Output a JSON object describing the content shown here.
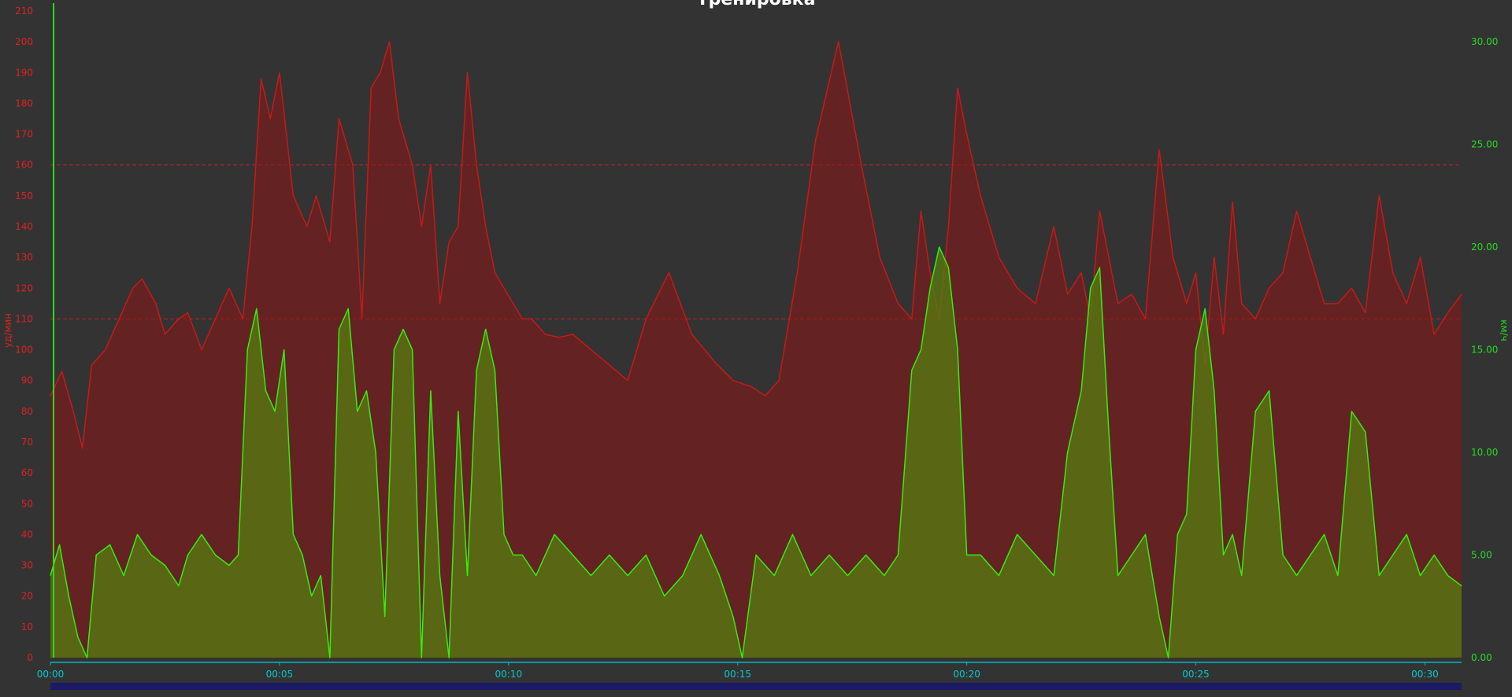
{
  "chart_data": {
    "type": "area",
    "title": "Тренировка",
    "xlabel": "",
    "x_unit": "time (hh:mm)",
    "xlim": [
      0,
      30.8
    ],
    "x_ticks": [
      0,
      5,
      10,
      15,
      20,
      25,
      30
    ],
    "x_tick_labels": [
      "00:00",
      "00:05",
      "00:10",
      "00:15",
      "00:20",
      "00:25",
      "00:30"
    ],
    "left_axis": {
      "label": "уд/мин",
      "ylim": [
        0,
        210
      ],
      "ticks": [
        0,
        10,
        20,
        30,
        40,
        50,
        60,
        70,
        80,
        90,
        100,
        110,
        120,
        130,
        140,
        150,
        160,
        170,
        180,
        190,
        200,
        210
      ],
      "color": "#dd2222"
    },
    "right_axis": {
      "label": "км/ч",
      "ylim": [
        0,
        31.5
      ],
      "ticks": [
        0,
        5,
        10,
        15,
        20,
        25,
        30
      ],
      "tick_labels": [
        "0.00",
        "5.00",
        "10.00",
        "15.00",
        "20.00",
        "25.00",
        "30.00"
      ],
      "color": "#22dd22"
    },
    "reference_lines": [
      {
        "axis": "left",
        "value": 110
      },
      {
        "axis": "left",
        "value": 160
      }
    ],
    "series": [
      {
        "axis": "left",
        "color": "#c41a1a",
        "fill": "rgba(140,20,20,0.55)",
        "x": [
          0,
          0.25,
          0.5,
          0.7,
          0.9,
          1.2,
          1.5,
          1.8,
          2.0,
          2.3,
          2.5,
          2.8,
          3.0,
          3.3,
          3.6,
          3.9,
          4.2,
          4.4,
          4.6,
          4.8,
          5.0,
          5.3,
          5.6,
          5.8,
          6.1,
          6.3,
          6.6,
          6.8,
          7.0,
          7.2,
          7.4,
          7.6,
          7.9,
          8.1,
          8.3,
          8.5,
          8.7,
          8.9,
          9.1,
          9.3,
          9.5,
          9.7,
          9.9,
          10.1,
          10.3,
          10.5,
          10.8,
          11.1,
          11.4,
          11.8,
          12.2,
          12.6,
          13.0,
          13.5,
          14.0,
          14.5,
          14.9,
          15.3,
          15.6,
          15.9,
          16.3,
          16.7,
          17.2,
          17.7,
          18.1,
          18.5,
          18.8,
          19.0,
          19.2,
          19.4,
          19.6,
          19.8,
          20.0,
          20.3,
          20.7,
          21.1,
          21.5,
          21.9,
          22.2,
          22.5,
          22.7,
          22.9,
          23.1,
          23.3,
          23.6,
          23.9,
          24.2,
          24.5,
          24.8,
          25.0,
          25.2,
          25.4,
          25.6,
          25.8,
          26.0,
          26.3,
          26.6,
          26.9,
          27.2,
          27.5,
          27.8,
          28.1,
          28.4,
          28.7,
          29.0,
          29.3,
          29.6,
          29.9,
          30.2,
          30.5,
          30.8
        ],
        "y": [
          85,
          93,
          80,
          68,
          95,
          100,
          110,
          120,
          123,
          115,
          105,
          110,
          112,
          100,
          110,
          120,
          110,
          140,
          188,
          175,
          190,
          150,
          140,
          150,
          135,
          175,
          160,
          110,
          185,
          190,
          200,
          175,
          160,
          140,
          160,
          115,
          135,
          140,
          190,
          160,
          140,
          125,
          120,
          115,
          110,
          110,
          105,
          104,
          105,
          100,
          95,
          90,
          110,
          125,
          105,
          96,
          90,
          88,
          85,
          90,
          125,
          168,
          200,
          160,
          130,
          115,
          110,
          145,
          125,
          110,
          140,
          185,
          170,
          150,
          130,
          120,
          115,
          140,
          118,
          125,
          110,
          145,
          130,
          115,
          118,
          110,
          165,
          130,
          115,
          125,
          95,
          130,
          105,
          148,
          115,
          110,
          120,
          125,
          145,
          130,
          115,
          115,
          120,
          112,
          150,
          125,
          115,
          130,
          105,
          112,
          118
        ]
      },
      {
        "axis": "right",
        "color": "#33ee11",
        "fill": "rgba(85,125,15,0.75)",
        "x": [
          0,
          0.2,
          0.4,
          0.6,
          0.8,
          1.0,
          1.3,
          1.6,
          1.9,
          2.2,
          2.5,
          2.8,
          3.0,
          3.3,
          3.6,
          3.9,
          4.1,
          4.3,
          4.5,
          4.7,
          4.9,
          5.1,
          5.3,
          5.5,
          5.7,
          5.9,
          6.1,
          6.3,
          6.5,
          6.7,
          6.9,
          7.1,
          7.3,
          7.5,
          7.7,
          7.9,
          8.1,
          8.3,
          8.5,
          8.7,
          8.9,
          9.1,
          9.3,
          9.5,
          9.7,
          9.9,
          10.1,
          10.3,
          10.6,
          11.0,
          11.4,
          11.8,
          12.2,
          12.6,
          13.0,
          13.4,
          13.8,
          14.2,
          14.6,
          14.9,
          15.1,
          15.4,
          15.8,
          16.2,
          16.6,
          17.0,
          17.4,
          17.8,
          18.2,
          18.5,
          18.8,
          19.0,
          19.2,
          19.4,
          19.6,
          19.8,
          20.0,
          20.3,
          20.7,
          21.1,
          21.5,
          21.9,
          22.2,
          22.5,
          22.7,
          22.9,
          23.1,
          23.3,
          23.6,
          23.9,
          24.2,
          24.4,
          24.6,
          24.8,
          25.0,
          25.2,
          25.4,
          25.6,
          25.8,
          26.0,
          26.3,
          26.6,
          26.9,
          27.2,
          27.5,
          27.8,
          28.1,
          28.4,
          28.7,
          29.0,
          29.3,
          29.6,
          29.9,
          30.2,
          30.5,
          30.8
        ],
        "y": [
          4,
          5.5,
          3,
          1,
          0,
          5,
          5.5,
          4,
          6,
          5,
          4.5,
          3.5,
          5,
          6,
          5,
          4.5,
          5,
          15,
          17,
          13,
          12,
          15,
          6,
          5,
          3,
          4,
          0,
          16,
          17,
          12,
          13,
          10,
          2,
          15,
          16,
          15,
          0,
          13,
          4,
          0,
          12,
          4,
          14,
          16,
          14,
          6,
          5,
          5,
          4,
          6,
          5,
          4,
          5,
          4,
          5,
          3,
          4,
          6,
          4,
          2,
          0,
          5,
          4,
          6,
          4,
          5,
          4,
          5,
          4,
          5,
          14,
          15,
          18,
          20,
          19,
          15,
          5,
          5,
          4,
          6,
          5,
          4,
          10,
          13,
          18,
          19,
          11,
          4,
          5,
          6,
          2,
          0,
          6,
          7,
          15,
          17,
          13,
          5,
          6,
          4,
          12,
          13,
          5,
          4,
          5,
          6,
          4,
          12,
          11,
          4,
          5,
          6,
          4,
          5,
          4,
          3.5
        ]
      }
    ]
  },
  "overview_bar_color": "#1a1a66"
}
